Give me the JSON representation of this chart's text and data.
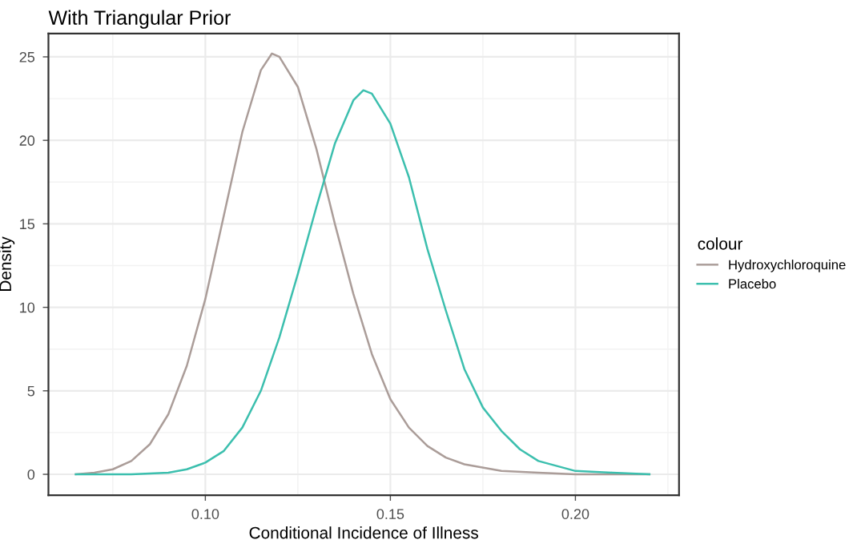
{
  "chart_data": {
    "type": "line",
    "title": "With Triangular Prior",
    "xlabel": "Conditional Incidence of Illness",
    "ylabel": "Density",
    "legend_title": "colour",
    "series": [
      {
        "name": "Hydroxychloroquine",
        "color": "#ab9d99",
        "x": [
          0.065,
          0.07,
          0.075,
          0.08,
          0.085,
          0.09,
          0.095,
          0.1,
          0.105,
          0.11,
          0.115,
          0.118,
          0.12,
          0.125,
          0.13,
          0.135,
          0.14,
          0.145,
          0.15,
          0.155,
          0.16,
          0.165,
          0.17,
          0.18,
          0.19,
          0.2,
          0.22
        ],
        "values": [
          0,
          0.1,
          0.3,
          0.8,
          1.8,
          3.6,
          6.5,
          10.5,
          15.5,
          20.5,
          24.2,
          25.2,
          25.0,
          23.2,
          19.5,
          15.0,
          10.8,
          7.2,
          4.5,
          2.8,
          1.7,
          1.0,
          0.6,
          0.2,
          0.1,
          0,
          0
        ]
      },
      {
        "name": "Placebo",
        "color": "#3cbfae",
        "x": [
          0.065,
          0.08,
          0.09,
          0.095,
          0.1,
          0.105,
          0.11,
          0.115,
          0.12,
          0.125,
          0.13,
          0.135,
          0.14,
          0.1427,
          0.145,
          0.15,
          0.155,
          0.16,
          0.165,
          0.17,
          0.175,
          0.18,
          0.185,
          0.19,
          0.2,
          0.21,
          0.22
        ],
        "values": [
          0,
          0,
          0.1,
          0.3,
          0.7,
          1.4,
          2.8,
          5.0,
          8.2,
          12.0,
          16.0,
          19.8,
          22.4,
          23.0,
          22.8,
          21.0,
          17.8,
          13.5,
          9.8,
          6.3,
          4.0,
          2.6,
          1.5,
          0.8,
          0.2,
          0.1,
          0
        ]
      }
    ],
    "xlim": [
      0.0576,
      0.228
    ],
    "xticks": [
      {
        "value": 0.1,
        "label": "0.10"
      },
      {
        "value": 0.15,
        "label": "0.15"
      },
      {
        "value": 0.2,
        "label": "0.20"
      }
    ],
    "ylim": [
      -1.25,
      26.4
    ],
    "yticks": [
      0,
      5,
      10,
      15,
      20,
      25
    ],
    "grid": true,
    "legend": "right",
    "line_style": "solid",
    "marker": "none"
  }
}
